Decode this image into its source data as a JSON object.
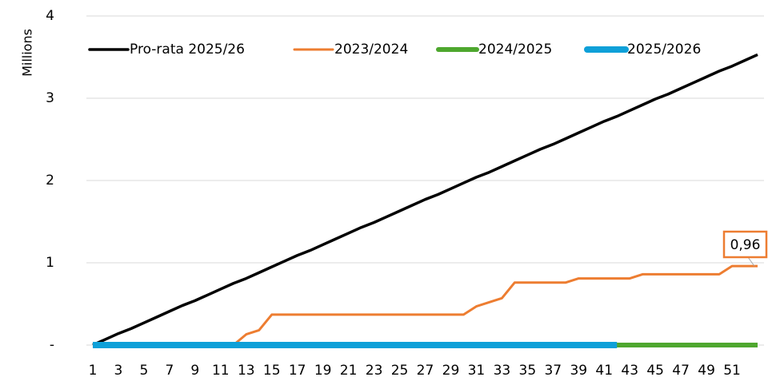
{
  "chart_data": {
    "type": "line",
    "ylabel": "Millions",
    "x": [
      1,
      2,
      3,
      4,
      5,
      6,
      7,
      8,
      9,
      10,
      11,
      12,
      13,
      14,
      15,
      16,
      17,
      18,
      19,
      20,
      21,
      22,
      23,
      24,
      25,
      26,
      27,
      28,
      29,
      30,
      31,
      32,
      33,
      34,
      35,
      36,
      37,
      38,
      39,
      40,
      41,
      42,
      43,
      44,
      45,
      46,
      47,
      48,
      49,
      50,
      51,
      52,
      53
    ],
    "xlim": [
      0.5,
      53.5
    ],
    "xticks": [
      1,
      3,
      5,
      7,
      9,
      11,
      13,
      15,
      17,
      19,
      21,
      23,
      25,
      27,
      29,
      31,
      33,
      35,
      37,
      39,
      41,
      43,
      45,
      47,
      49,
      51
    ],
    "ylim": [
      0,
      4
    ],
    "yticks": [
      {
        "value": 0,
        "label": "-"
      },
      1,
      2,
      3,
      4
    ],
    "grid": true,
    "legend": "top",
    "series": [
      {
        "name": "Pro-rata 2025/26",
        "color": "#000000",
        "width": 3.5,
        "values": [
          0,
          0.07,
          0.14,
          0.2,
          0.27,
          0.34,
          0.41,
          0.48,
          0.54,
          0.61,
          0.68,
          0.75,
          0.81,
          0.88,
          0.95,
          1.02,
          1.09,
          1.15,
          1.22,
          1.29,
          1.36,
          1.43,
          1.49,
          1.56,
          1.63,
          1.7,
          1.77,
          1.83,
          1.9,
          1.97,
          2.04,
          2.1,
          2.17,
          2.24,
          2.31,
          2.38,
          2.44,
          2.51,
          2.58,
          2.65,
          2.72,
          2.78,
          2.85,
          2.92,
          2.99,
          3.05,
          3.12,
          3.19,
          3.26,
          3.33,
          3.39,
          3.46,
          3.53
        ]
      },
      {
        "name": "2023/2024",
        "color": "#ed7d31",
        "width": 3,
        "values": [
          0,
          0,
          0,
          0,
          0,
          0,
          0,
          0,
          0,
          0,
          0,
          0,
          0.13,
          0.18,
          0.37,
          0.37,
          0.37,
          0.37,
          0.37,
          0.37,
          0.37,
          0.37,
          0.37,
          0.37,
          0.37,
          0.37,
          0.37,
          0.37,
          0.37,
          0.37,
          0.47,
          0.52,
          0.57,
          0.76,
          0.76,
          0.76,
          0.76,
          0.76,
          0.81,
          0.81,
          0.81,
          0.81,
          0.81,
          0.86,
          0.86,
          0.86,
          0.86,
          0.86,
          0.86,
          0.86,
          0.96,
          0.96,
          0.96
        ],
        "value_labels": [
          null,
          null,
          null,
          null,
          null,
          null,
          null,
          null,
          null,
          null,
          null,
          null,
          null,
          null,
          null,
          null,
          null,
          null,
          null,
          null,
          null,
          null,
          null,
          null,
          null,
          null,
          null,
          null,
          null,
          null,
          null,
          null,
          null,
          null,
          null,
          null,
          null,
          null,
          null,
          null,
          null,
          null,
          null,
          null,
          null,
          null,
          null,
          null,
          null,
          null,
          null,
          null,
          "0,96"
        ]
      },
      {
        "name": "2024/2025",
        "color": "#4ea72e",
        "width": 6,
        "values": [
          0,
          0,
          0,
          0,
          0,
          0,
          0,
          0,
          0,
          0,
          0,
          0,
          0,
          0,
          0,
          0,
          0,
          0,
          0,
          0,
          0,
          0,
          0,
          0,
          0,
          0,
          0,
          0,
          0,
          0,
          0,
          0,
          0,
          0,
          0,
          0,
          0,
          0,
          0,
          0,
          0,
          0,
          0,
          0,
          0,
          0,
          0,
          0,
          0,
          0,
          0,
          0,
          0
        ]
      },
      {
        "name": "2025/2026",
        "color": "#0ea0d8",
        "width": 8,
        "values": [
          0,
          0,
          0,
          0,
          0,
          0,
          0,
          0,
          0,
          0,
          0,
          0,
          0,
          0,
          0,
          0,
          0,
          0,
          0,
          0,
          0,
          0,
          0,
          0,
          0,
          0,
          0,
          0,
          0,
          0,
          0,
          0,
          0,
          0,
          0,
          0,
          0,
          0,
          0,
          0,
          0,
          0,
          null,
          null,
          null,
          null,
          null,
          null,
          null,
          null,
          null,
          null,
          null
        ]
      }
    ]
  }
}
